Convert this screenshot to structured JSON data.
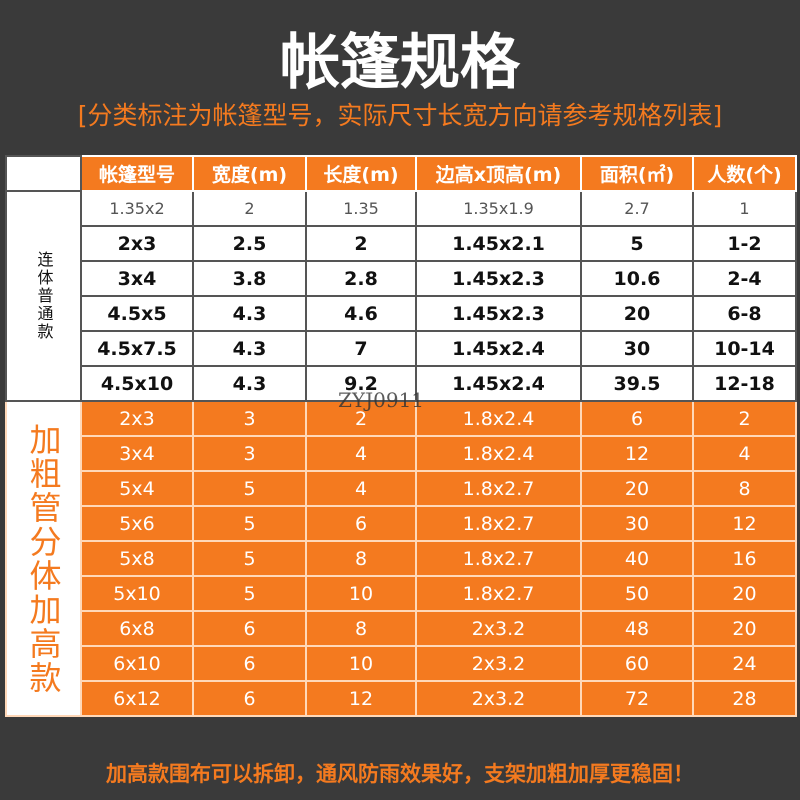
{
  "header": {
    "title": "帐篷规格",
    "subtitle": "[分类标注为帐篷型号，实际尺寸长宽方向请参考规格列表]"
  },
  "table": {
    "columns": [
      "帐篷型号",
      "宽度(m)",
      "长度(m)",
      "边高x顶高(m)",
      "面积(㎡)",
      "人数(个)"
    ],
    "groups": [
      {
        "label": "连体普通款",
        "rows": [
          [
            "1.35x2",
            "2",
            "1.35",
            "1.35x1.9",
            "2.7",
            "1"
          ],
          [
            "2x3",
            "2.5",
            "2",
            "1.45x2.1",
            "5",
            "1-2"
          ],
          [
            "3x4",
            "3.8",
            "2.8",
            "1.45x2.3",
            "10.6",
            "2-4"
          ],
          [
            "4.5x5",
            "4.3",
            "4.6",
            "1.45x2.3",
            "20",
            "6-8"
          ],
          [
            "4.5x7.5",
            "4.3",
            "7",
            "1.45x2.4",
            "30",
            "10-14"
          ],
          [
            "4.5x10",
            "4.3",
            "9.2",
            "1.45x2.4",
            "39.5",
            "12-18"
          ]
        ]
      },
      {
        "label": "加粗管分体加高款",
        "rows": [
          [
            "2x3",
            "3",
            "2",
            "1.8x2.4",
            "6",
            "2"
          ],
          [
            "3x4",
            "3",
            "4",
            "1.8x2.4",
            "12",
            "4"
          ],
          [
            "5x4",
            "5",
            "4",
            "1.8x2.7",
            "20",
            "8"
          ],
          [
            "5x6",
            "5",
            "6",
            "1.8x2.7",
            "30",
            "12"
          ],
          [
            "5x8",
            "5",
            "8",
            "1.8x2.7",
            "40",
            "16"
          ],
          [
            "5x10",
            "5",
            "10",
            "1.8x2.7",
            "50",
            "20"
          ],
          [
            "6x8",
            "6",
            "8",
            "2x3.2",
            "48",
            "20"
          ],
          [
            "6x10",
            "6",
            "10",
            "2x3.2",
            "60",
            "24"
          ],
          [
            "6x12",
            "6",
            "12",
            "2x3.2",
            "72",
            "28"
          ]
        ]
      }
    ]
  },
  "watermark": "ZYJ0911",
  "footer": "加高款围布可以拆卸，通风防雨效果好，支架加粗加厚更稳固！"
}
